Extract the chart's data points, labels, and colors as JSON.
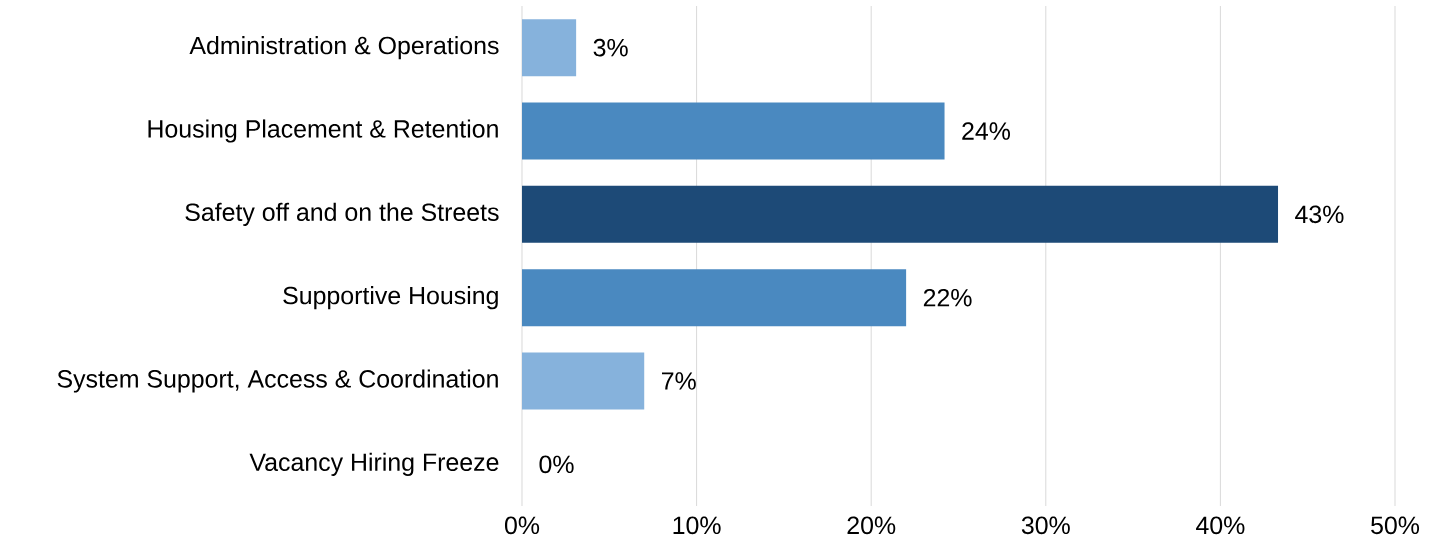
{
  "chart_data": {
    "type": "bar",
    "orientation": "horizontal",
    "categories": [
      "Administration & Operations",
      "Housing Placement & Retention",
      "Safety off and on the Streets",
      "Supportive Housing",
      "System Support, Access & Coordination",
      "Vacancy Hiring Freeze"
    ],
    "values": [
      3.1,
      24.2,
      43.3,
      22.0,
      7.0,
      0
    ],
    "value_labels": [
      "3%",
      "24%",
      "43%",
      "22%",
      "7%",
      "0%"
    ],
    "colors": [
      "#86b2dc",
      "#4a89c0",
      "#1d4a77",
      "#4a89c0",
      "#86b2dc",
      "#86b2dc"
    ],
    "xlim": [
      0,
      50
    ],
    "xticks": [
      {
        "value": 0,
        "label": "0%"
      },
      {
        "value": 10,
        "label": "10%"
      },
      {
        "value": 20,
        "label": "20%"
      },
      {
        "value": 30,
        "label": "30%"
      },
      {
        "value": 40,
        "label": "40%"
      },
      {
        "value": 50,
        "label": "50%"
      }
    ],
    "grid": "x"
  }
}
